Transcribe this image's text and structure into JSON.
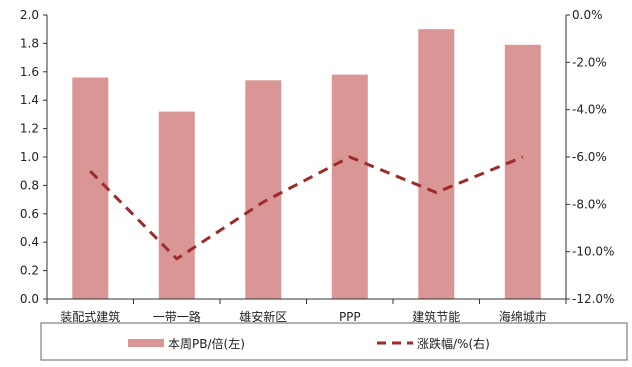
{
  "colors": {
    "bar": "#d99694",
    "line": "#9e2a2b",
    "axis": "#333333",
    "legend_border": "#666666"
  },
  "chart_data": {
    "type": "bar",
    "title": "",
    "categories": [
      "装配式建筑",
      "一带一路",
      "雄安新区",
      "PPP",
      "建筑节能",
      "海绵城市"
    ],
    "series": [
      {
        "name": "本周PB/倍(左)",
        "type": "bar",
        "axis": "left",
        "values": [
          1.56,
          1.32,
          1.54,
          1.58,
          1.9,
          1.79
        ]
      },
      {
        "name": "涨跌幅/%(右)",
        "type": "line",
        "axis": "right",
        "style": "dashed",
        "values": [
          -6.6,
          -10.3,
          -7.9,
          -6.0,
          -7.5,
          -6.0
        ]
      }
    ],
    "left_axis": {
      "ylim": [
        0,
        2.0
      ],
      "ticks": [
        "0.0",
        "0.2",
        "0.4",
        "0.6",
        "0.8",
        "1.0",
        "1.2",
        "1.4",
        "1.6",
        "1.8",
        "2.0"
      ]
    },
    "right_axis": {
      "ylim": [
        -12.0,
        0.0
      ],
      "ticks": [
        "-12.0%",
        "-10.0%",
        "-8.0%",
        "-6.0%",
        "-4.0%",
        "-2.0%",
        "0.0%"
      ]
    },
    "grid": false,
    "legend_position": "bottom"
  }
}
